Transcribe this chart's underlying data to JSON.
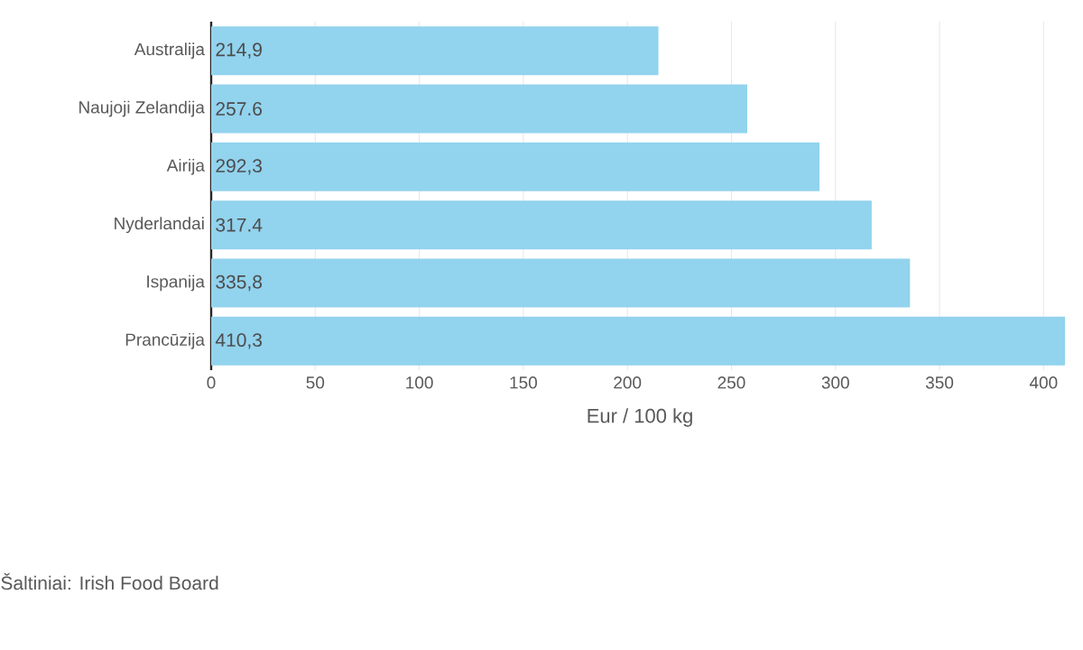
{
  "chart_data": {
    "type": "bar",
    "orientation": "horizontal",
    "categories": [
      "Australija",
      "Naujoji Zelandija",
      "Airija",
      "Nyderlandai",
      "Ispanija",
      "Prancūzija"
    ],
    "values": [
      214.9,
      257.6,
      292.3,
      317.4,
      335.8,
      410.3
    ],
    "value_labels": [
      "214,9",
      "257.6",
      "292,3",
      "317.4",
      "335,8",
      "410,3"
    ],
    "color": "#92d3ee",
    "xlim": [
      0,
      412
    ],
    "xticks": [
      0,
      50,
      100,
      150,
      200,
      250,
      300,
      350,
      400
    ],
    "xlabel": "Eur / 100 kg",
    "grid": "x",
    "annotations": [
      "Šaltiniai: Irish Food Board"
    ]
  }
}
